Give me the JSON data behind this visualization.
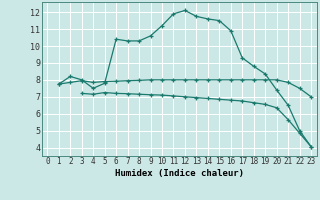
{
  "bg_color": "#cce8e6",
  "grid_color": "#ffffff",
  "line_color": "#1a7a6e",
  "xlabel": "Humidex (Indice chaleur)",
  "xlim": [
    -0.5,
    23.5
  ],
  "ylim": [
    3.5,
    12.6
  ],
  "yticks": [
    4,
    5,
    6,
    7,
    8,
    9,
    10,
    11,
    12
  ],
  "xticks": [
    0,
    1,
    2,
    3,
    4,
    5,
    6,
    7,
    8,
    9,
    10,
    11,
    12,
    13,
    14,
    15,
    16,
    17,
    18,
    19,
    20,
    21,
    22,
    23
  ],
  "line1_x": [
    1,
    2,
    3,
    4,
    5,
    6,
    7,
    8,
    9,
    10,
    11,
    12,
    13,
    14,
    15,
    16,
    17,
    18,
    19,
    20,
    21,
    22,
    23
  ],
  "line1_y": [
    7.75,
    8.2,
    8.0,
    7.5,
    7.8,
    10.4,
    10.3,
    10.3,
    10.6,
    11.2,
    11.9,
    12.1,
    11.75,
    11.6,
    11.5,
    10.9,
    9.3,
    8.8,
    8.35,
    7.4,
    6.5,
    5.0,
    4.05
  ],
  "line2_x": [
    1,
    2,
    3,
    4,
    5,
    6,
    7,
    8,
    9,
    10,
    11,
    12,
    13,
    14,
    15,
    16,
    17,
    18,
    19,
    20,
    21,
    22,
    23
  ],
  "line2_y": [
    7.75,
    7.85,
    7.95,
    7.85,
    7.9,
    7.92,
    7.95,
    7.97,
    8.0,
    8.0,
    8.0,
    8.0,
    8.0,
    8.0,
    8.0,
    8.0,
    8.0,
    8.0,
    8.0,
    8.0,
    7.85,
    7.5,
    7.0
  ],
  "line3_x": [
    3,
    4,
    5,
    6,
    7,
    8,
    9,
    10,
    11,
    12,
    13,
    14,
    15,
    16,
    17,
    18,
    19,
    20,
    21,
    22,
    23
  ],
  "line3_y": [
    7.2,
    7.15,
    7.25,
    7.2,
    7.18,
    7.15,
    7.12,
    7.1,
    7.05,
    7.0,
    6.95,
    6.9,
    6.85,
    6.8,
    6.75,
    6.65,
    6.55,
    6.35,
    5.65,
    4.85,
    4.05
  ]
}
